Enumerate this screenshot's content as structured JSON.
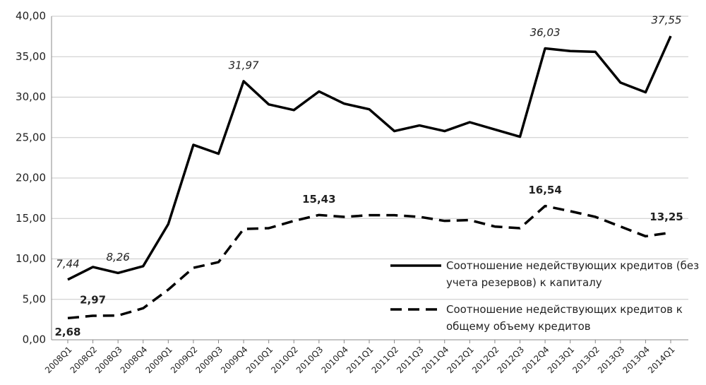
{
  "chart_data": {
    "type": "line",
    "categories": [
      "2008Q1",
      "2008Q2",
      "2008Q3",
      "2008Q4",
      "2009Q1",
      "2009Q2",
      "2009Q3",
      "2009Q4",
      "2010Q1",
      "2010Q2",
      "2010Q3",
      "2010Q4",
      "2011Q1",
      "2011Q2",
      "2011Q3",
      "2011Q4",
      "2012Q1",
      "2012Q2",
      "2012Q3",
      "2012Q4",
      "2013Q1",
      "2013Q2",
      "2013Q3",
      "2013Q4",
      "2014Q1"
    ],
    "series": [
      {
        "name": "Соотношение  недействующих кредитов (без учета резервов) к капиталу",
        "color": "#000000",
        "line_style": "solid",
        "values": [
          7.44,
          9.0,
          8.26,
          9.1,
          14.3,
          24.1,
          23.0,
          31.97,
          29.1,
          28.4,
          30.7,
          29.2,
          28.5,
          25.8,
          26.5,
          25.8,
          26.9,
          26.0,
          25.1,
          36.03,
          35.7,
          35.6,
          31.8,
          30.6,
          37.55
        ],
        "value_labels": [
          "7,44",
          null,
          "8,26",
          null,
          null,
          null,
          null,
          "31,97",
          null,
          null,
          null,
          null,
          null,
          null,
          null,
          null,
          null,
          null,
          null,
          "36,03",
          null,
          null,
          null,
          null,
          "37,55"
        ]
      },
      {
        "name": "Соотношение недействующих кредитов к общему объему кредитов",
        "color": "#000000",
        "line_style": "dashed",
        "values": [
          2.68,
          2.97,
          3.0,
          3.9,
          6.2,
          8.9,
          9.6,
          13.7,
          13.8,
          14.7,
          15.43,
          15.2,
          15.4,
          15.4,
          15.2,
          14.7,
          14.8,
          14.0,
          13.8,
          16.54,
          15.9,
          15.2,
          14.0,
          12.8,
          13.25
        ],
        "value_labels": [
          "2,68",
          "2,97",
          null,
          null,
          null,
          null,
          null,
          null,
          null,
          null,
          "15,43",
          null,
          null,
          null,
          null,
          null,
          null,
          null,
          null,
          "16,54",
          null,
          null,
          null,
          null,
          "13,25"
        ]
      }
    ],
    "ylim": [
      0,
      40
    ],
    "yticks": [
      {
        "value": 0,
        "label": "0,00"
      },
      {
        "value": 5,
        "label": "5,00"
      },
      {
        "value": 10,
        "label": "10,00"
      },
      {
        "value": 15,
        "label": "15,00"
      },
      {
        "value": 20,
        "label": "20,00"
      },
      {
        "value": 25,
        "label": "25,00"
      },
      {
        "value": 30,
        "label": "30,00"
      },
      {
        "value": 35,
        "label": "35,00"
      },
      {
        "value": 40,
        "label": "40,00"
      }
    ],
    "grid": true,
    "legend": "right"
  }
}
